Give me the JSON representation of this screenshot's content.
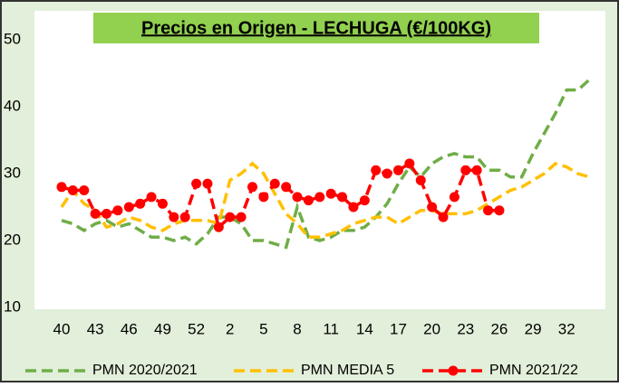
{
  "chart_data": {
    "type": "line",
    "title": "Precios en Origen - LECHUGA (€/100KG)",
    "categories": [
      40,
      null,
      null,
      43,
      null,
      null,
      46,
      null,
      null,
      49,
      null,
      null,
      52,
      null,
      null,
      2,
      null,
      null,
      5,
      null,
      null,
      8,
      null,
      null,
      11,
      null,
      null,
      14,
      null,
      null,
      17,
      null,
      null,
      20,
      null,
      null,
      23,
      null,
      null,
      26,
      null,
      null,
      29,
      null,
      null,
      32,
      null,
      null
    ],
    "ylim": [
      10,
      50
    ],
    "yticks": [
      10,
      20,
      30,
      40,
      50
    ],
    "series": [
      {
        "name": "PMN 2020/2021",
        "color": "#70ad47",
        "dash": true,
        "marker": false,
        "values": [
          23,
          22.5,
          21.5,
          22.5,
          23,
          22,
          22.5,
          21.5,
          20.5,
          20.5,
          20,
          20.5,
          19.5,
          21,
          23.5,
          23.5,
          22.5,
          20,
          20,
          19.5,
          19,
          25,
          20.5,
          20,
          20.5,
          21.5,
          21.5,
          22,
          23.5,
          25.5,
          28.5,
          31,
          29.5,
          31.5,
          32.5,
          33,
          32.5,
          32.5,
          30.5,
          30.5,
          29.5,
          29.5,
          33,
          36,
          39,
          42.5,
          42.5,
          44
        ]
      },
      {
        "name": "PMN MEDIA 5",
        "color": "#ffc000",
        "dash": true,
        "marker": false,
        "values": [
          25,
          27.5,
          25.5,
          24.5,
          22,
          22.5,
          23.5,
          23,
          22,
          21.5,
          22.5,
          23,
          23,
          23,
          22.5,
          29,
          30,
          31.5,
          30,
          27,
          24,
          22.5,
          20.5,
          20.5,
          21,
          21.5,
          22.5,
          23,
          23.5,
          23.5,
          22.5,
          23.5,
          24.5,
          24.5,
          24,
          24,
          24,
          24.5,
          25.5,
          26.5,
          27.5,
          28,
          29,
          30,
          31.5,
          31,
          30,
          29.5
        ]
      },
      {
        "name": "PMN 2021/22",
        "color": "#ff0000",
        "dash": true,
        "marker": true,
        "values": [
          28,
          27.5,
          27.5,
          24,
          24,
          24.5,
          25,
          25.5,
          26.5,
          25.5,
          23.5,
          23.5,
          28.5,
          28.5,
          22,
          23.5,
          23.5,
          28,
          26.5,
          28.5,
          28,
          26.5,
          26,
          26.5,
          27,
          26.5,
          25,
          26,
          30.5,
          30,
          30.5,
          31.5,
          29,
          25,
          23.5,
          26.5,
          30.5,
          30.5,
          24.5,
          24.5,
          null,
          null,
          null,
          null,
          null,
          null,
          null,
          null
        ]
      }
    ]
  }
}
